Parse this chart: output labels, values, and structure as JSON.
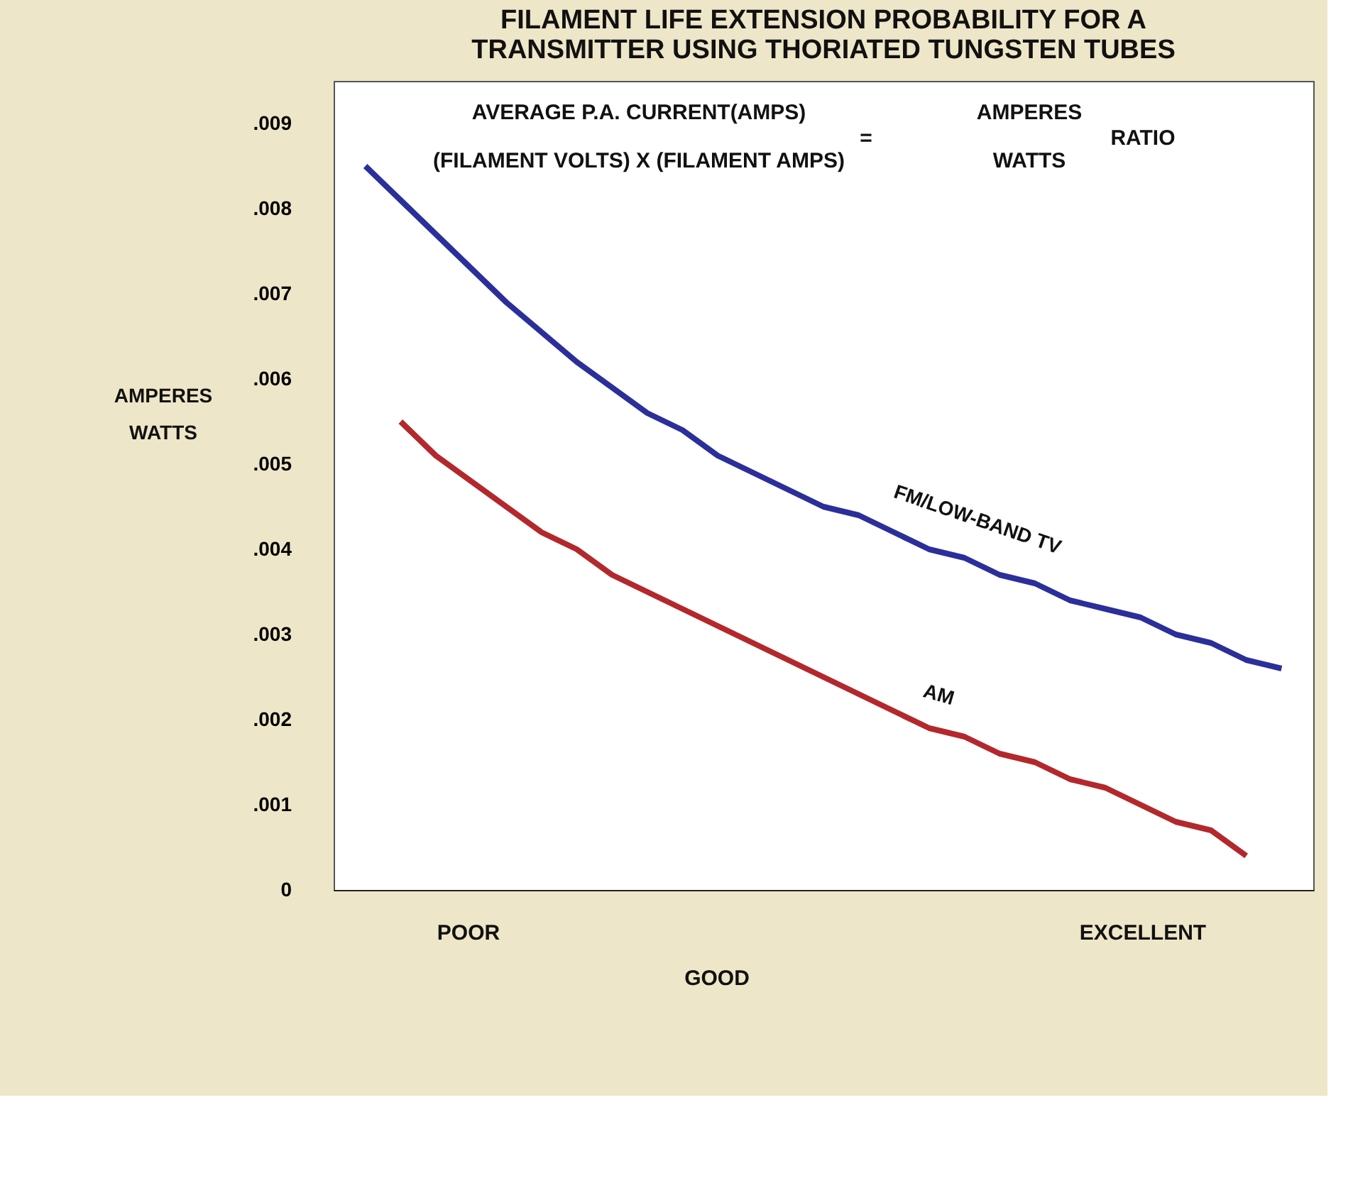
{
  "chart_data": {
    "type": "line",
    "title": [
      "FILAMENT LIFE EXTENSION PROBABILITY FOR A",
      "TRANSMITTER USING THORIATED TUNGSTEN TUBES"
    ],
    "ylabel": [
      "AMPERES",
      "WATTS"
    ],
    "categories": [
      null,
      null,
      null,
      null,
      null,
      null,
      null,
      null,
      null,
      null,
      null,
      null,
      null,
      null,
      null,
      null,
      null,
      null,
      null,
      null,
      null,
      null,
      null,
      null,
      null,
      null,
      null
    ],
    "series": [
      {
        "name": "FM/LOW-BAND TV",
        "color": "#2b2f9a",
        "values": [
          0.0085,
          0.0081,
          0.0077,
          0.0073,
          0.0069,
          0.00655,
          0.0062,
          0.0059,
          0.0056,
          0.0054,
          0.0051,
          0.0049,
          0.0047,
          0.0045,
          0.0044,
          0.0042,
          0.004,
          0.0039,
          0.0037,
          0.0036,
          0.0034,
          0.0033,
          0.0032,
          0.003,
          0.0029,
          0.0027,
          0.0026
        ]
      },
      {
        "name": "AM",
        "color": "#b3282d",
        "values": [
          null,
          0.0055,
          0.0051,
          0.0048,
          0.0045,
          0.0042,
          0.004,
          0.0037,
          0.0035,
          0.0033,
          0.0031,
          0.0029,
          0.0027,
          0.0025,
          0.0023,
          0.0021,
          0.0019,
          0.0018,
          0.0016,
          0.0015,
          0.0013,
          0.0012,
          0.001,
          0.0008,
          0.0007,
          0.0004,
          null
        ]
      }
    ],
    "ylim": [
      0,
      0.0095
    ],
    "yticks": [
      0,
      {
        "value": 0.001,
        "label": ".001"
      },
      {
        "value": 0.002,
        "label": ".002"
      },
      {
        "value": 0.003,
        "label": ".003"
      },
      {
        "value": 0.004,
        "label": ".004"
      },
      {
        "value": 0.005,
        "label": ".005"
      },
      {
        "value": 0.006,
        "label": ".006"
      },
      {
        "value": 0.007,
        "label": ".007"
      },
      {
        "value": 0.008,
        "label": ".008"
      },
      {
        "value": 0.009,
        "label": ".009"
      }
    ],
    "tick_labels": "y",
    "grid": false,
    "marker": "none",
    "line_style": "solid",
    "annotations": [
      "AVERAGE P.A. CURRENT(AMPS)",
      "(FILAMENT VOLTS) X (FILAMENT AMPS)",
      "=",
      "AMPERES",
      "WATTS",
      "RATIO",
      "POOR",
      "GOOD",
      "EXCELLENT"
    ]
  }
}
